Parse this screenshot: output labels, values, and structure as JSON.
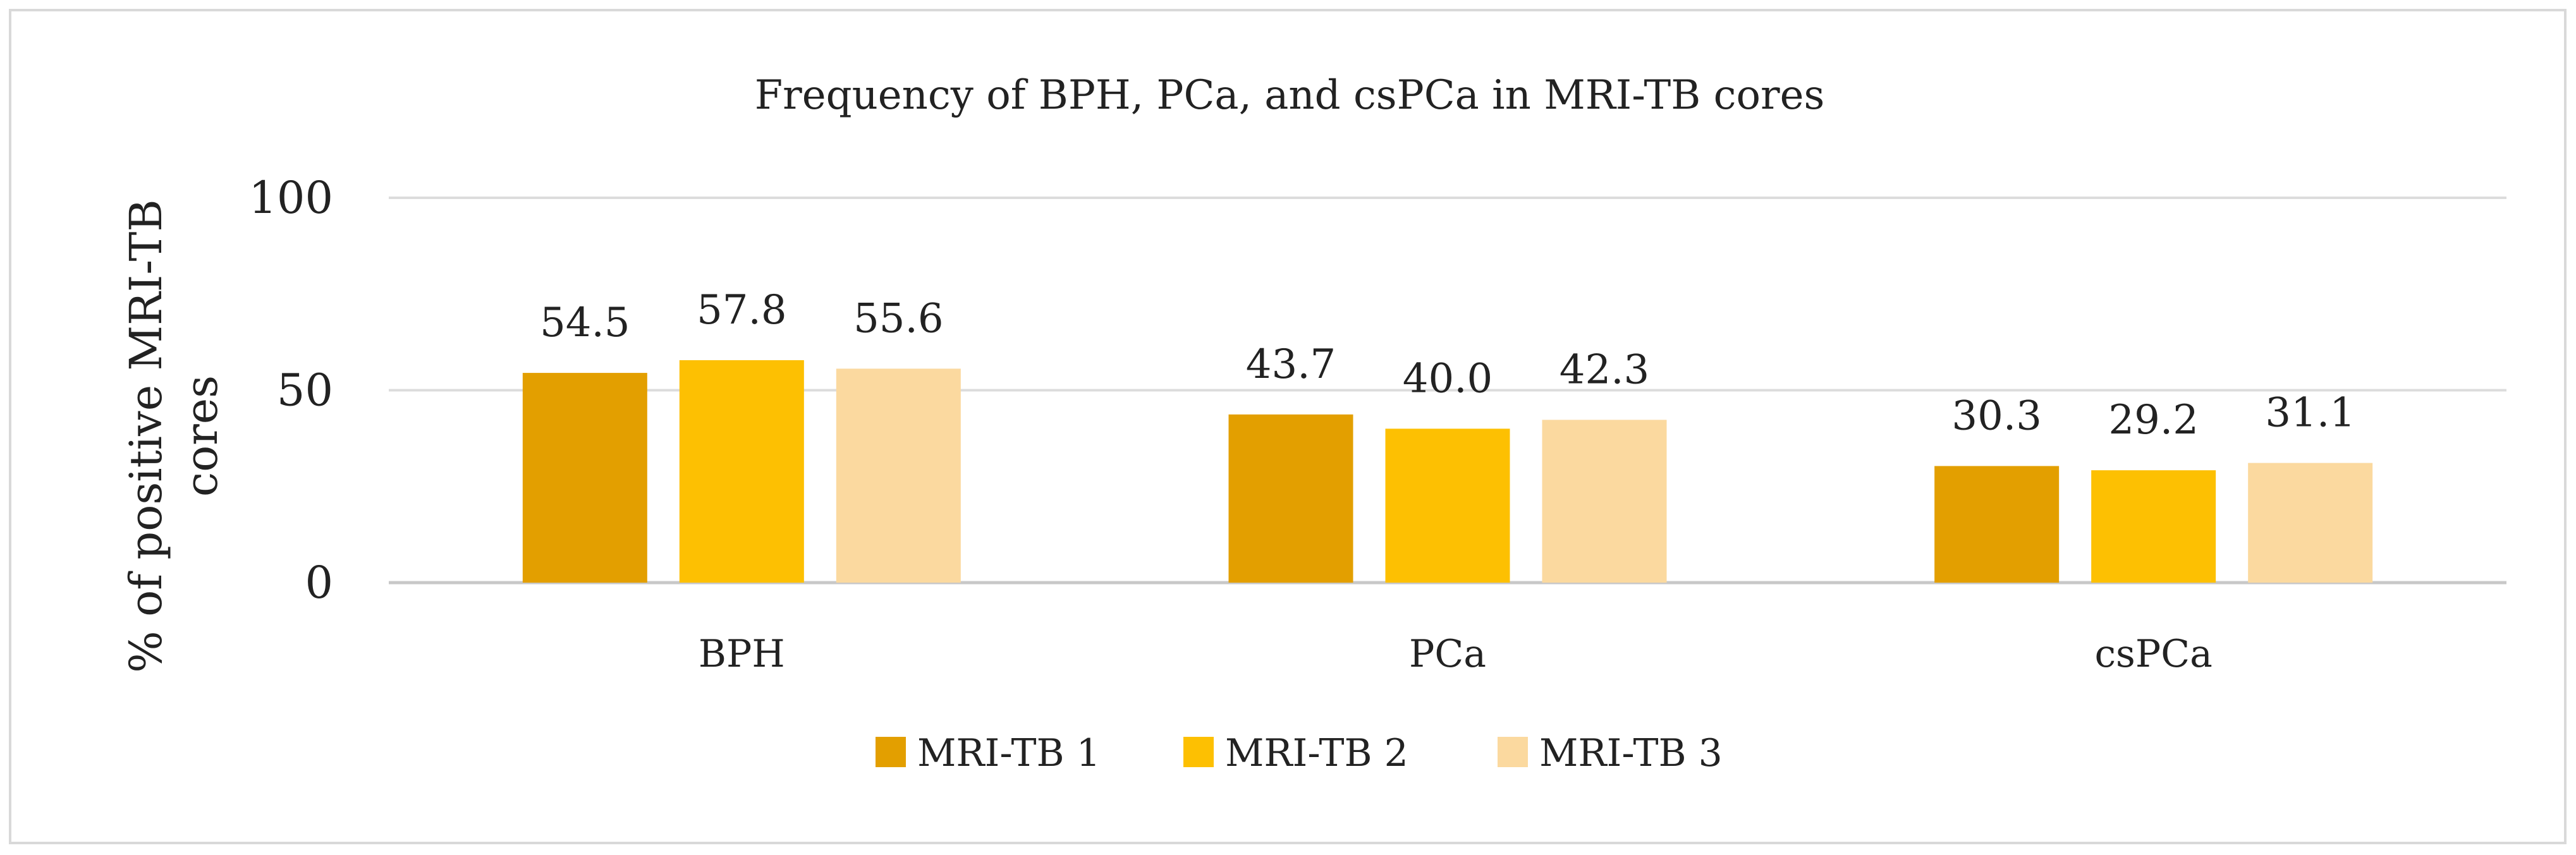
{
  "chart_data": {
    "type": "bar",
    "title": "Frequency of BPH, PCa, and csPCa in MRI-TB cores",
    "ylabel_lines": [
      "% of positive MRI-TB",
      "cores"
    ],
    "xlabel": "",
    "categories": [
      "BPH",
      "PCa",
      "csPCa"
    ],
    "series": [
      {
        "name": "MRI-TB 1",
        "color": "#e39f00",
        "values": [
          54.5,
          43.7,
          30.3
        ],
        "labels": [
          "54.5",
          "43.7",
          "30.3"
        ]
      },
      {
        "name": "MRI-TB 2",
        "color": "#fdc002",
        "values": [
          57.8,
          40.0,
          29.2
        ],
        "labels": [
          "57.8",
          "40.0",
          "29.2"
        ]
      },
      {
        "name": "MRI-TB 3",
        "color": "#fbd99f",
        "values": [
          55.6,
          42.3,
          31.1
        ],
        "labels": [
          "55.6",
          "42.3",
          "31.1"
        ]
      }
    ],
    "ylim": [
      0,
      100
    ],
    "yticks": [
      0,
      50,
      100
    ],
    "ytick_labels": [
      "0",
      "50",
      "100"
    ],
    "grid": true,
    "legend_position": "bottom"
  }
}
